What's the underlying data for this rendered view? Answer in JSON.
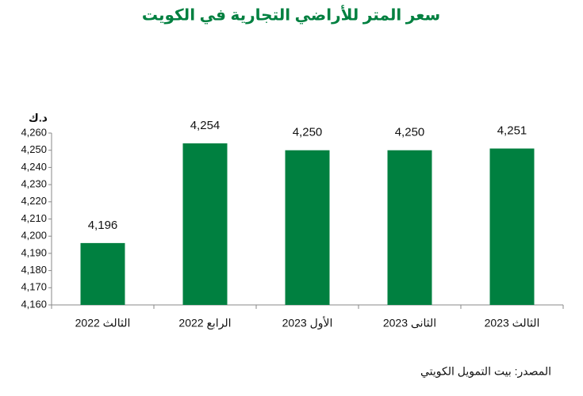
{
  "chart_data": {
    "type": "bar",
    "title": "سعر المتر للأراضي التجارية في الكويت",
    "y_label": "د.ك",
    "source": "المصدر: بيت التمويل الكويتي",
    "categories": [
      "الثالث 2022",
      "الرابع 2022",
      "الأول 2023",
      "الثانى 2023",
      "الثالث 2023"
    ],
    "values": [
      4196,
      4254,
      4250,
      4250,
      4251
    ],
    "value_labels": [
      "4,196",
      "4,254",
      "4,250",
      "4,250",
      "4,251"
    ],
    "color": "#008040",
    "ylim": [
      4160,
      4260
    ],
    "yticks": [
      {
        "value": 4160,
        "label": "4,160"
      },
      {
        "value": 4170,
        "label": "4,170"
      },
      {
        "value": 4180,
        "label": "4,180"
      },
      {
        "value": 4190,
        "label": "4,190"
      },
      {
        "value": 4200,
        "label": "4,200"
      },
      {
        "value": 4210,
        "label": "4,210"
      },
      {
        "value": 4220,
        "label": "4,220"
      },
      {
        "value": 4230,
        "label": "4,230"
      },
      {
        "value": 4240,
        "label": "4,240"
      },
      {
        "value": 4250,
        "label": "4,250"
      },
      {
        "value": 4260,
        "label": "4,260"
      }
    ],
    "grid": false
  }
}
